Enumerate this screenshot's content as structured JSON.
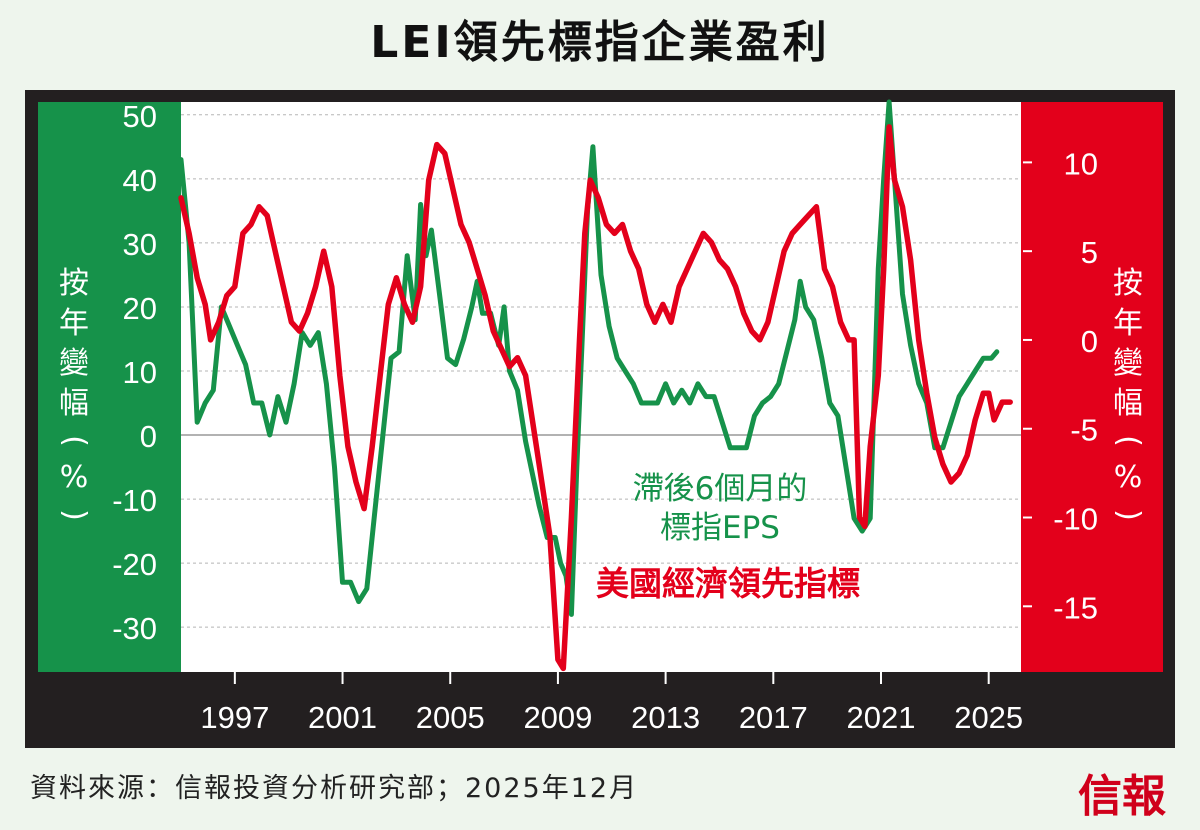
{
  "chart_data": {
    "type": "line",
    "title": "LEI領先標指企業盈利",
    "y_left": {
      "label": "按年變幅(%)",
      "range": [
        -37,
        52
      ],
      "ticks": [
        50,
        40,
        30,
        20,
        10,
        0,
        -10,
        -20,
        -30
      ],
      "tick_labels": [
        "50",
        "40",
        "30",
        "20",
        "10",
        "0",
        "-10",
        "-20",
        "-30"
      ]
    },
    "y_right": {
      "label": "按年變幅(%)",
      "range": [
        -18.7,
        13.4
      ],
      "ticks": [
        10,
        5,
        0,
        -5,
        -10,
        -15
      ],
      "tick_labels": [
        "10",
        "5",
        "0",
        "-5",
        "-10",
        "-15"
      ]
    },
    "x": {
      "range": [
        1995,
        2026.2
      ],
      "ticks": [
        1997,
        2001,
        2005,
        2009,
        2013,
        2017,
        2021,
        2025
      ],
      "tick_labels": [
        "1997",
        "2001",
        "2005",
        "2009",
        "2013",
        "2017",
        "2021",
        "2025"
      ]
    },
    "series": [
      {
        "name": "滯後6個月的標指EPS",
        "axis": "left",
        "color": "#16924a",
        "points": [
          [
            1995.0,
            43
          ],
          [
            1995.3,
            30
          ],
          [
            1995.6,
            2
          ],
          [
            1995.9,
            5
          ],
          [
            1996.2,
            7
          ],
          [
            1996.5,
            20
          ],
          [
            1996.8,
            17
          ],
          [
            1997.1,
            14
          ],
          [
            1997.4,
            11
          ],
          [
            1997.7,
            5
          ],
          [
            1998.0,
            5
          ],
          [
            1998.3,
            0
          ],
          [
            1998.6,
            6
          ],
          [
            1998.9,
            2
          ],
          [
            1999.2,
            8
          ],
          [
            1999.5,
            16
          ],
          [
            1999.8,
            14
          ],
          [
            2000.1,
            16
          ],
          [
            2000.4,
            8
          ],
          [
            2000.7,
            -5
          ],
          [
            2001.0,
            -23
          ],
          [
            2001.3,
            -23
          ],
          [
            2001.6,
            -26
          ],
          [
            2001.9,
            -24
          ],
          [
            2002.2,
            -12
          ],
          [
            2002.5,
            0
          ],
          [
            2002.8,
            12
          ],
          [
            2003.1,
            13
          ],
          [
            2003.4,
            28
          ],
          [
            2003.7,
            18
          ],
          [
            2003.9,
            36
          ],
          [
            2004.1,
            28
          ],
          [
            2004.3,
            32
          ],
          [
            2004.6,
            22
          ],
          [
            2004.9,
            12
          ],
          [
            2005.2,
            11
          ],
          [
            2005.5,
            15
          ],
          [
            2005.8,
            20
          ],
          [
            2006.0,
            24
          ],
          [
            2006.2,
            19
          ],
          [
            2006.5,
            19
          ],
          [
            2006.8,
            14
          ],
          [
            2007.0,
            20
          ],
          [
            2007.2,
            10
          ],
          [
            2007.5,
            7
          ],
          [
            2007.8,
            -1
          ],
          [
            2008.0,
            -5
          ],
          [
            2008.3,
            -11
          ],
          [
            2008.6,
            -16
          ],
          [
            2008.9,
            -16
          ],
          [
            2009.1,
            -20
          ],
          [
            2009.3,
            -22
          ],
          [
            2009.5,
            -28
          ],
          [
            2009.7,
            -5
          ],
          [
            2009.9,
            15
          ],
          [
            2010.1,
            35
          ],
          [
            2010.3,
            45
          ],
          [
            2010.6,
            25
          ],
          [
            2010.9,
            17
          ],
          [
            2011.2,
            12
          ],
          [
            2011.5,
            10
          ],
          [
            2011.8,
            8
          ],
          [
            2012.1,
            5
          ],
          [
            2012.4,
            5
          ],
          [
            2012.7,
            5
          ],
          [
            2013.0,
            8
          ],
          [
            2013.3,
            5
          ],
          [
            2013.6,
            7
          ],
          [
            2013.9,
            5
          ],
          [
            2014.2,
            8
          ],
          [
            2014.5,
            6
          ],
          [
            2014.8,
            6
          ],
          [
            2015.1,
            2
          ],
          [
            2015.4,
            -2
          ],
          [
            2015.7,
            -2
          ],
          [
            2016.0,
            -2
          ],
          [
            2016.3,
            3
          ],
          [
            2016.6,
            5
          ],
          [
            2016.9,
            6
          ],
          [
            2017.2,
            8
          ],
          [
            2017.5,
            13
          ],
          [
            2017.8,
            18
          ],
          [
            2018.0,
            24
          ],
          [
            2018.2,
            20
          ],
          [
            2018.5,
            18
          ],
          [
            2018.8,
            12
          ],
          [
            2019.1,
            5
          ],
          [
            2019.4,
            3
          ],
          [
            2019.7,
            -5
          ],
          [
            2020.0,
            -13
          ],
          [
            2020.3,
            -15
          ],
          [
            2020.6,
            -13
          ],
          [
            2020.9,
            26
          ],
          [
            2021.1,
            40
          ],
          [
            2021.3,
            52
          ],
          [
            2021.5,
            40
          ],
          [
            2021.8,
            22
          ],
          [
            2022.1,
            14
          ],
          [
            2022.4,
            8
          ],
          [
            2022.7,
            5
          ],
          [
            2023.0,
            -2
          ],
          [
            2023.3,
            -2
          ],
          [
            2023.6,
            2
          ],
          [
            2023.9,
            6
          ],
          [
            2024.2,
            8
          ],
          [
            2024.5,
            10
          ],
          [
            2024.8,
            12
          ],
          [
            2025.1,
            12
          ],
          [
            2025.3,
            13
          ]
        ]
      },
      {
        "name": "美國經濟領先指標",
        "axis": "right",
        "color": "#e3001b",
        "points": [
          [
            1995.0,
            8
          ],
          [
            1995.3,
            6
          ],
          [
            1995.6,
            3.5
          ],
          [
            1995.9,
            2
          ],
          [
            1996.1,
            0
          ],
          [
            1996.4,
            1
          ],
          [
            1996.7,
            2.5
          ],
          [
            1997.0,
            3
          ],
          [
            1997.3,
            6
          ],
          [
            1997.6,
            6.5
          ],
          [
            1997.9,
            7.5
          ],
          [
            1998.2,
            7
          ],
          [
            1998.5,
            5
          ],
          [
            1998.8,
            3
          ],
          [
            1999.1,
            1
          ],
          [
            1999.4,
            0.5
          ],
          [
            1999.7,
            1.5
          ],
          [
            2000.0,
            3
          ],
          [
            2000.3,
            5
          ],
          [
            2000.6,
            3
          ],
          [
            2000.9,
            -2
          ],
          [
            2001.2,
            -6
          ],
          [
            2001.5,
            -8
          ],
          [
            2001.8,
            -9.5
          ],
          [
            2002.1,
            -6
          ],
          [
            2002.4,
            -2
          ],
          [
            2002.7,
            2
          ],
          [
            2003.0,
            3.5
          ],
          [
            2003.3,
            2
          ],
          [
            2003.6,
            1
          ],
          [
            2003.9,
            3
          ],
          [
            2004.2,
            9
          ],
          [
            2004.5,
            11
          ],
          [
            2004.8,
            10.5
          ],
          [
            2005.1,
            8.5
          ],
          [
            2005.4,
            6.5
          ],
          [
            2005.7,
            5.5
          ],
          [
            2006.0,
            4
          ],
          [
            2006.3,
            2.5
          ],
          [
            2006.6,
            0.5
          ],
          [
            2006.9,
            -0.5
          ],
          [
            2007.2,
            -1.5
          ],
          [
            2007.5,
            -1
          ],
          [
            2007.8,
            -2
          ],
          [
            2008.1,
            -5
          ],
          [
            2008.4,
            -8
          ],
          [
            2008.7,
            -11
          ],
          [
            2009.0,
            -18
          ],
          [
            2009.2,
            -18.5
          ],
          [
            2009.5,
            -10
          ],
          [
            2009.8,
            0
          ],
          [
            2010.0,
            6
          ],
          [
            2010.2,
            9
          ],
          [
            2010.5,
            8
          ],
          [
            2010.8,
            6.5
          ],
          [
            2011.1,
            6
          ],
          [
            2011.4,
            6.5
          ],
          [
            2011.7,
            5
          ],
          [
            2012.0,
            4
          ],
          [
            2012.3,
            2
          ],
          [
            2012.6,
            1
          ],
          [
            2012.9,
            2
          ],
          [
            2013.2,
            1
          ],
          [
            2013.5,
            3
          ],
          [
            2013.8,
            4
          ],
          [
            2014.1,
            5
          ],
          [
            2014.4,
            6
          ],
          [
            2014.7,
            5.5
          ],
          [
            2015.0,
            4.5
          ],
          [
            2015.3,
            4
          ],
          [
            2015.6,
            3
          ],
          [
            2015.9,
            1.5
          ],
          [
            2016.2,
            0.5
          ],
          [
            2016.5,
            0
          ],
          [
            2016.8,
            1
          ],
          [
            2017.1,
            3
          ],
          [
            2017.4,
            5
          ],
          [
            2017.7,
            6
          ],
          [
            2018.0,
            6.5
          ],
          [
            2018.3,
            7
          ],
          [
            2018.6,
            7.5
          ],
          [
            2018.9,
            4
          ],
          [
            2019.2,
            3
          ],
          [
            2019.5,
            1
          ],
          [
            2019.8,
            0
          ],
          [
            2020.0,
            0
          ],
          [
            2020.2,
            -10
          ],
          [
            2020.4,
            -10.5
          ],
          [
            2020.6,
            -6
          ],
          [
            2020.9,
            -2
          ],
          [
            2021.1,
            4
          ],
          [
            2021.3,
            12
          ],
          [
            2021.5,
            9
          ],
          [
            2021.8,
            7.5
          ],
          [
            2022.1,
            4.5
          ],
          [
            2022.4,
            0
          ],
          [
            2022.7,
            -3
          ],
          [
            2023.0,
            -5.5
          ],
          [
            2023.3,
            -7
          ],
          [
            2023.6,
            -8
          ],
          [
            2023.9,
            -7.5
          ],
          [
            2024.2,
            -6.5
          ],
          [
            2024.5,
            -4.5
          ],
          [
            2024.8,
            -3
          ],
          [
            2025.0,
            -3
          ],
          [
            2025.2,
            -4.5
          ],
          [
            2025.5,
            -3.5
          ],
          [
            2025.8,
            -3.5
          ]
        ]
      }
    ],
    "annotations": [
      {
        "text_lines": [
          "滯後6個月的",
          "標指EPS"
        ],
        "color": "#16924a"
      },
      {
        "text_lines": [
          "美國經濟領先指標"
        ],
        "color": "#e3001b"
      }
    ]
  },
  "labels": {
    "left_axis_chars": [
      "按",
      "年",
      "變",
      "幅",
      "(",
      "%",
      ")"
    ],
    "right_axis_chars": [
      "按",
      "年",
      "變",
      "幅",
      "(",
      "%",
      ")"
    ]
  },
  "footer": {
    "source": "資料來源：信報投資分析研究部；2025年12月",
    "brand": "信報"
  }
}
